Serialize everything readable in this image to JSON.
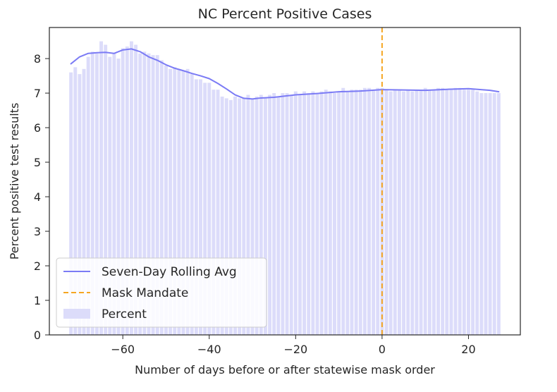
{
  "chart_data": {
    "type": "bar",
    "title": "NC Percent Positive Cases",
    "xlabel": "Number of days before or after statewise mask order",
    "ylabel": "Percent positive test results",
    "xlim": [
      -77,
      32
    ],
    "ylim": [
      0,
      8.9
    ],
    "xticks": [
      -60,
      -40,
      -20,
      0,
      20
    ],
    "xtick_labels": [
      "−60",
      "−40",
      "−20",
      "0",
      "20"
    ],
    "yticks": [
      0,
      1,
      2,
      3,
      4,
      5,
      6,
      7,
      8
    ],
    "ytick_labels": [
      "0",
      "1",
      "2",
      "3",
      "4",
      "5",
      "6",
      "7",
      "8"
    ],
    "grid": false,
    "legend_placement": "lower-left",
    "colors": {
      "bar": "#dcdcfa",
      "line": "#7b7bf5",
      "mandate": "#f5a623"
    },
    "legend": [
      "Seven-Day Rolling Avg",
      "Mask Mandate",
      "Percent"
    ],
    "series": [
      {
        "name": "Percent",
        "type": "bar",
        "x": [
          -72,
          -71,
          -70,
          -69,
          -68,
          -67,
          -66,
          -65,
          -64,
          -63,
          -62,
          -61,
          -60,
          -59,
          -58,
          -57,
          -56,
          -55,
          -54,
          -53,
          -52,
          -51,
          -50,
          -49,
          -48,
          -47,
          -46,
          -45,
          -44,
          -43,
          -42,
          -41,
          -40,
          -39,
          -38,
          -37,
          -36,
          -35,
          -34,
          -33,
          -32,
          -31,
          -30,
          -29,
          -28,
          -27,
          -26,
          -25,
          -24,
          -23,
          -22,
          -21,
          -20,
          -19,
          -18,
          -17,
          -16,
          -15,
          -14,
          -13,
          -12,
          -11,
          -10,
          -9,
          -8,
          -7,
          -6,
          -5,
          -4,
          -3,
          -2,
          -1,
          0,
          1,
          2,
          3,
          4,
          5,
          6,
          7,
          8,
          9,
          10,
          11,
          12,
          13,
          14,
          15,
          16,
          17,
          18,
          19,
          20,
          21,
          22,
          23,
          24,
          25,
          26,
          27
        ],
        "values": [
          7.6,
          7.75,
          7.55,
          7.7,
          8.05,
          8.2,
          8.15,
          8.5,
          8.4,
          8.05,
          8.15,
          8.0,
          8.3,
          8.35,
          8.5,
          8.4,
          8.15,
          8.2,
          8.15,
          8.1,
          8.1,
          7.95,
          7.8,
          7.7,
          7.75,
          7.7,
          7.65,
          7.7,
          7.55,
          7.4,
          7.4,
          7.3,
          7.3,
          7.1,
          7.1,
          6.9,
          6.85,
          6.8,
          6.9,
          6.85,
          6.85,
          6.95,
          6.85,
          6.9,
          6.95,
          6.85,
          6.95,
          7.0,
          6.9,
          7.0,
          7.0,
          6.95,
          7.05,
          6.95,
          7.05,
          7.0,
          7.05,
          7.0,
          7.05,
          7.1,
          7.05,
          7.0,
          7.05,
          7.15,
          7.05,
          7.1,
          7.1,
          7.1,
          7.15,
          7.15,
          7.1,
          7.15,
          7.15,
          7.1,
          7.05,
          7.1,
          7.1,
          7.05,
          7.1,
          7.05,
          7.1,
          7.1,
          7.15,
          7.1,
          7.1,
          7.15,
          7.15,
          7.1,
          7.1,
          7.15,
          7.15,
          7.1,
          7.1,
          7.1,
          7.05,
          7.0,
          7.0,
          7.0,
          7.0,
          7.0
        ]
      },
      {
        "name": "Seven-Day Rolling Avg",
        "type": "line",
        "x": [
          -72,
          -70,
          -68,
          -66,
          -64,
          -62,
          -60,
          -58,
          -56,
          -54,
          -52,
          -50,
          -48,
          -46,
          -44,
          -42,
          -40,
          -38,
          -36,
          -34,
          -32,
          -30,
          -28,
          -25,
          -20,
          -15,
          -10,
          -5,
          0,
          5,
          10,
          15,
          20,
          25,
          27
        ],
        "values": [
          7.85,
          8.05,
          8.15,
          8.17,
          8.18,
          8.15,
          8.25,
          8.28,
          8.2,
          8.05,
          7.95,
          7.82,
          7.72,
          7.65,
          7.57,
          7.5,
          7.42,
          7.28,
          7.12,
          6.95,
          6.85,
          6.83,
          6.86,
          6.88,
          6.95,
          6.99,
          7.04,
          7.06,
          7.1,
          7.09,
          7.08,
          7.11,
          7.13,
          7.08,
          7.04
        ]
      },
      {
        "name": "Mask Mandate",
        "type": "vline",
        "x": 0
      }
    ]
  }
}
